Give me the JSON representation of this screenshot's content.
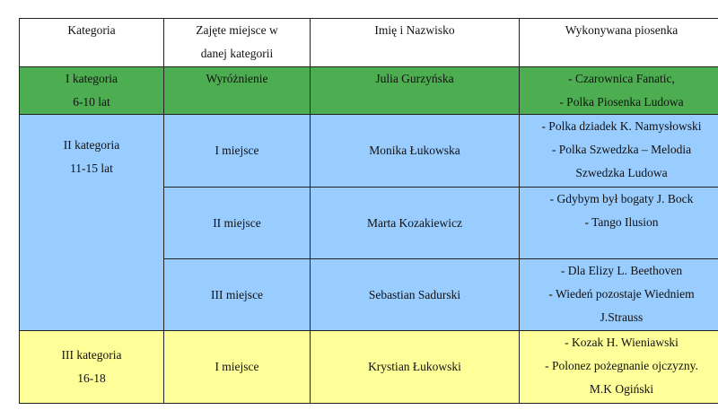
{
  "colors": {
    "green": "#4CAE50",
    "blue": "#99CCFF",
    "yellow": "#FFFF99",
    "header": "#FFFFFF"
  },
  "headers": [
    "Kategoria",
    "Zajęte miejsce w",
    "danej kategorii",
    "Imię i Nazwisko",
    "Wykonywana piosenka"
  ],
  "cat1": {
    "name": "I kategoria",
    "age": "6-10 lat",
    "place": "Wyróżnienie",
    "person": "Julia Gurzyńska",
    "songs": [
      "-  Czarownica Fanatic,",
      "- Polka Piosenka Ludowa"
    ]
  },
  "cat2": {
    "name": "II kategoria",
    "age": "11-15 lat",
    "rows": [
      {
        "place": "I miejsce",
        "person": "Monika Łukowska",
        "songs": [
          "- Polka dziadek K. Namysłowski",
          "- Polka Szwedzka – Melodia",
          "Szwedzka Ludowa"
        ]
      },
      {
        "place": "II miejsce",
        "person": "Marta Kozakiewicz",
        "songs": [
          "- Gdybym był bogaty J. Bock",
          "- Tango Ilusion"
        ]
      },
      {
        "place": "III miejsce",
        "person": "Sebastian Sadurski",
        "songs": [
          "- Dla Elizy  L. Beethoven",
          "- Wiedeń pozostaje Wiedniem",
          "J.Strauss"
        ]
      }
    ]
  },
  "cat3": {
    "name": "III kategoria",
    "age": "16-18",
    "place": "I miejsce",
    "person": "Krystian Łukowski",
    "songs": [
      "- Kozak H. Wieniawski",
      "- Polonez pożegnanie ojczyzny.",
      "M.K Ogiński"
    ]
  }
}
